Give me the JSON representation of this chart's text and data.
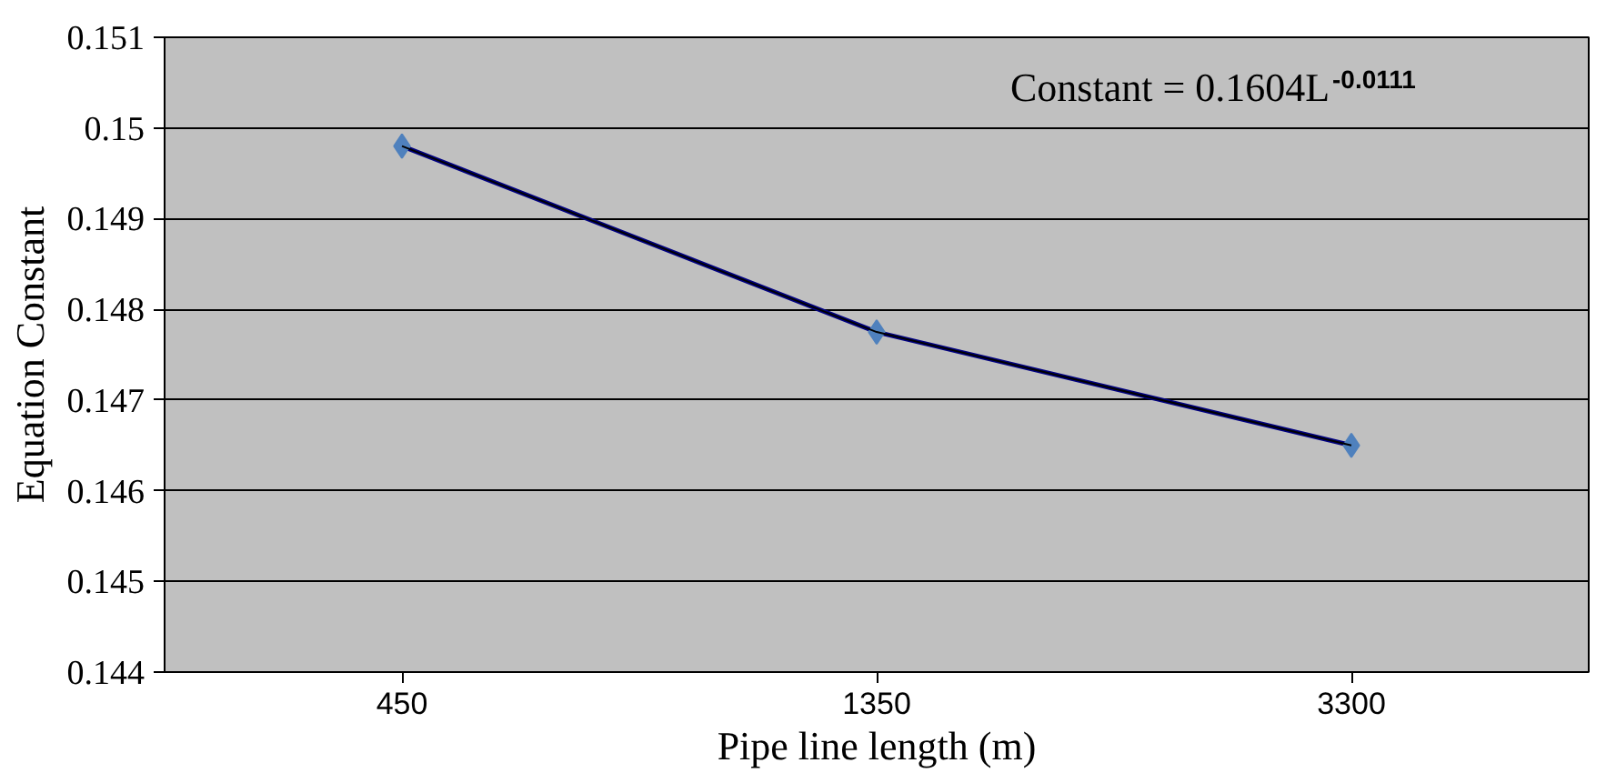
{
  "chart_data": {
    "type": "line",
    "xlabel": "Pipe line length (m)",
    "ylabel": "Equation Constant",
    "categories": [
      "450",
      "1350",
      "3300"
    ],
    "ylim": [
      0.144,
      0.151
    ],
    "yticks": [
      0.144,
      0.145,
      0.146,
      0.147,
      0.148,
      0.149,
      0.15,
      0.151
    ],
    "grid": "y",
    "marker": "diamond",
    "line_style": "solid",
    "series": [
      {
        "color": "#000080",
        "colors": [
          "#4f81bd",
          "#4f81bd",
          "#4f81bd"
        ],
        "values": [
          0.1498,
          0.14775,
          0.1465
        ]
      },
      {
        "type": "line",
        "marker": "none",
        "color": "#000000",
        "values": [
          0.1498,
          0.14775,
          0.1465
        ]
      }
    ],
    "annotations": [
      "Constant = 0.1604L$^{-0.0111}$"
    ]
  }
}
